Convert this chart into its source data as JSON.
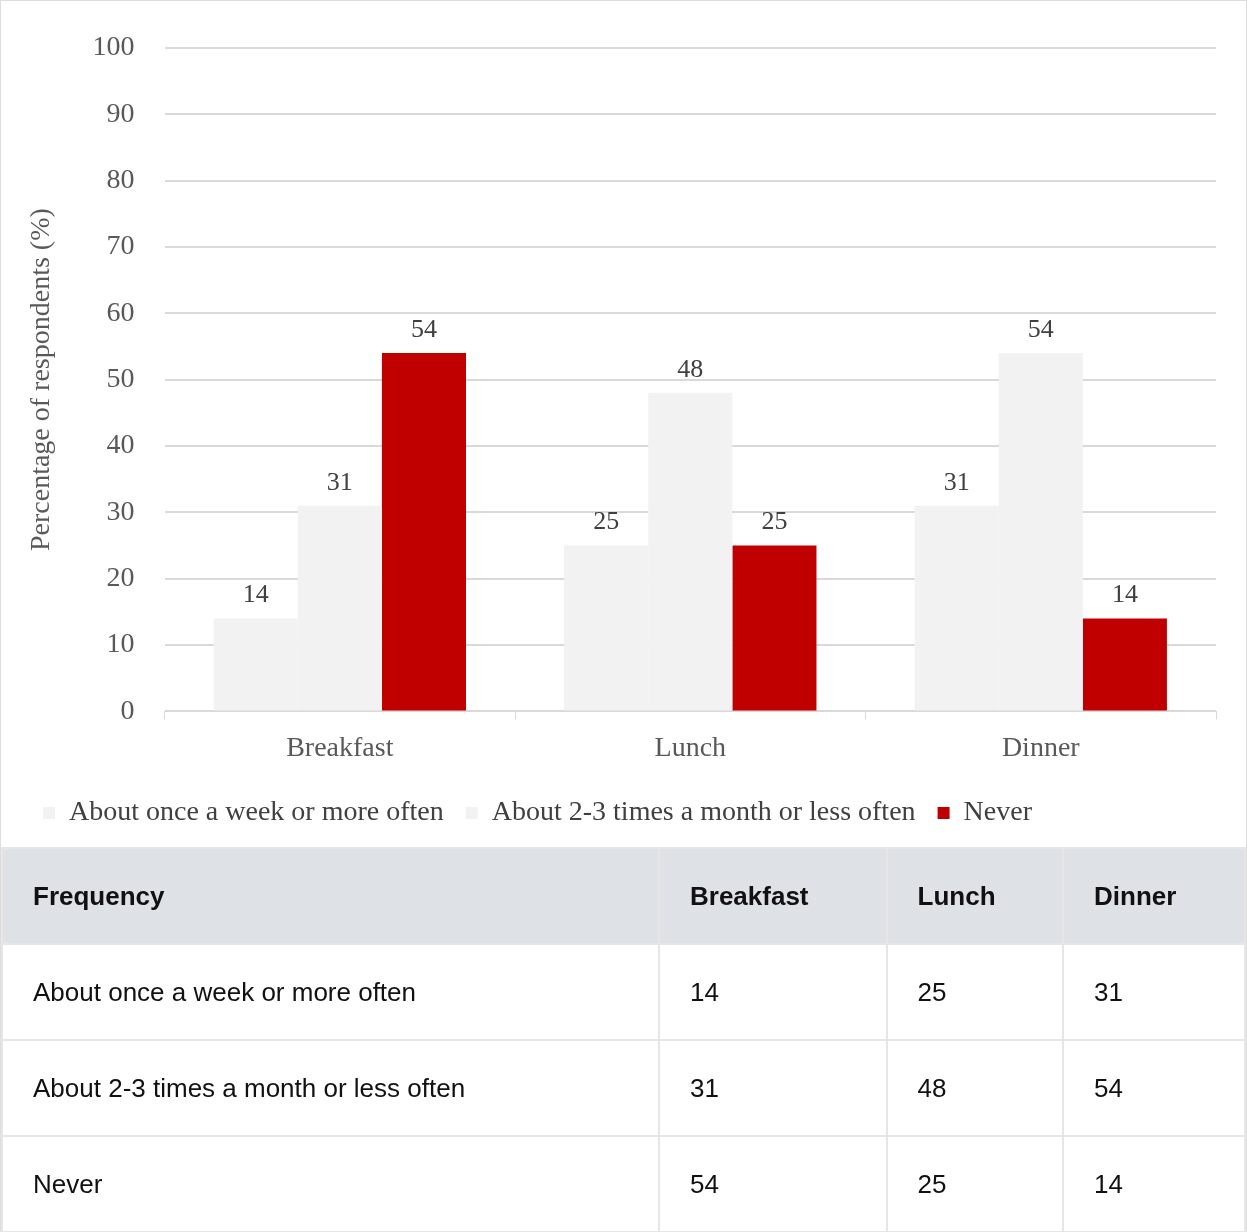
{
  "chart_data": [
    {
      "type": "bar",
      "ylabel": "Percentage of respondents (%)",
      "categories": [
        "Breakfast",
        "Lunch",
        "Dinner"
      ],
      "series": [
        {
          "name": "About once a week or more often",
          "color": "#f2f2f2",
          "values": [
            14,
            25,
            31
          ]
        },
        {
          "name": "About 2-3 times a month or less often",
          "color": "#f2f2f2",
          "values": [
            31,
            48,
            54
          ]
        },
        {
          "name": "Never",
          "color": "#c00000",
          "values": [
            54,
            25,
            14
          ]
        }
      ],
      "ylim": [
        0,
        100
      ],
      "yticks": [
        0,
        10,
        20,
        30,
        40,
        50,
        60,
        70,
        80,
        90,
        100
      ],
      "grid": "y",
      "legend": "bottom",
      "data_labels": true
    },
    {
      "type": "other",
      "annotations": [
        "Frequency"
      ],
      "categories": [
        "Breakfast",
        "Lunch",
        "Dinner"
      ],
      "series": [
        {
          "name": "About once a week or more often",
          "values": [
            14,
            25,
            31
          ]
        },
        {
          "name": "About 2-3 times a month or less often",
          "values": [
            31,
            48,
            54
          ]
        },
        {
          "name": "Never",
          "values": [
            54,
            25,
            14
          ]
        }
      ],
      "data_labels": true
    }
  ]
}
